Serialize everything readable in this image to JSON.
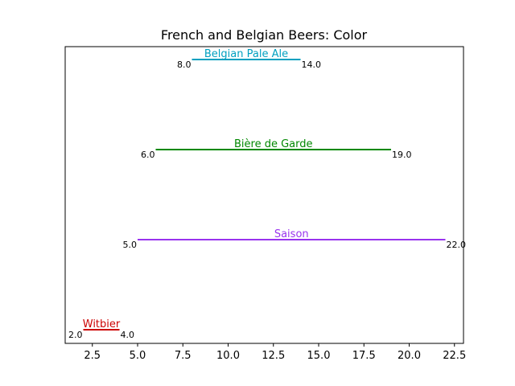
{
  "chart_data": {
    "type": "range",
    "title": "French and Belgian Beers: Color",
    "xlabel": "",
    "ylabel": "",
    "xlim": [
      1.0,
      23.0
    ],
    "xticks": [
      "2.5",
      "5.0",
      "7.5",
      "10.0",
      "12.5",
      "15.0",
      "17.5",
      "20.0",
      "22.5"
    ],
    "grid": false,
    "series": [
      {
        "name": "Witbier",
        "min": 2.0,
        "max": 4.0,
        "min_label": "2.0",
        "max_label": "4.0",
        "color": "#cc0000"
      },
      {
        "name": "Saison",
        "min": 5.0,
        "max": 22.0,
        "min_label": "5.0",
        "max_label": "22.0",
        "color": "#9933ee"
      },
      {
        "name": "Bière de Garde",
        "min": 6.0,
        "max": 19.0,
        "min_label": "6.0",
        "max_label": "19.0",
        "color": "#008800"
      },
      {
        "name": "Belgian Pale Ale",
        "min": 8.0,
        "max": 14.0,
        "min_label": "8.0",
        "max_label": "14.0",
        "color": "#00a0c0"
      }
    ]
  }
}
